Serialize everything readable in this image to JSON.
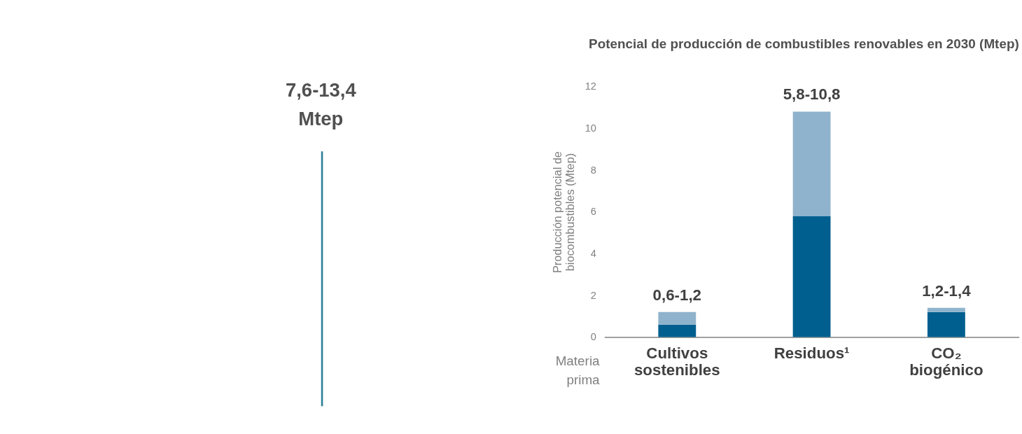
{
  "chart_data": {
    "type": "bar",
    "title": "Potencial de producción de combustibles renovables en 2030 (Mtep)",
    "xlabel": "Materia prima",
    "ylabel": "Producción potencial de biocombustibles (Mtep)",
    "categories": [
      "Cultivos sostenibles",
      "Residuos¹",
      "CO₂ biogénico"
    ],
    "stacked": true,
    "series": [
      {
        "color": "#005f8f",
        "values": [
          0.6,
          5.8,
          1.2
        ]
      },
      {
        "color": "#8fb3cc",
        "values": [
          0.6,
          5.0,
          0.2
        ]
      }
    ],
    "totals": [
      "0,6-1,2",
      "5,8-10,8",
      "1,2-1,4"
    ],
    "annotations": [
      "7,6-13,4 Mtep"
    ],
    "ylim": [
      0,
      12
    ],
    "yticks": [
      0,
      2,
      4,
      6,
      8,
      10,
      12
    ],
    "grid": false,
    "legend": false
  }
}
